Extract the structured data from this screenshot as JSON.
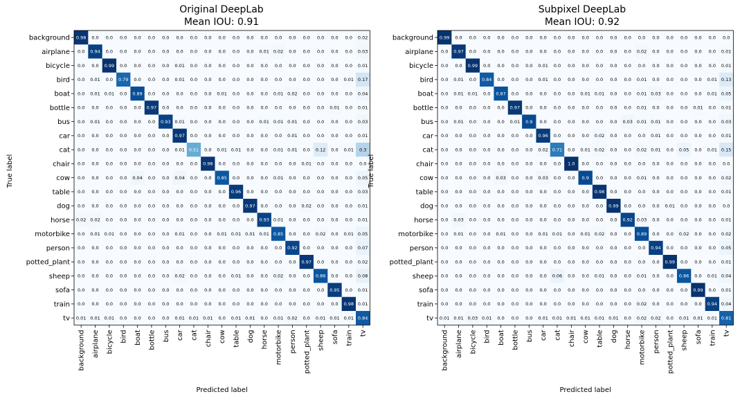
{
  "chart_data": [
    {
      "type": "heatmap",
      "title": "Original DeepLab",
      "subtitle": "Mean IOU: 0.91",
      "xlabel": "Predicted label",
      "ylabel": "True label",
      "colormap": "Blues",
      "labels": [
        "background",
        "airplane",
        "bicycle",
        "bird",
        "boat",
        "bottle",
        "bus",
        "car",
        "cat",
        "chair",
        "cow",
        "table",
        "dog",
        "horse",
        "motorbike",
        "person",
        "potted_plant",
        "sheep",
        "sofa",
        "train",
        "tv"
      ],
      "matrix": [
        [
          "0.98",
          "0.0",
          "0.0",
          "0.0",
          "0.0",
          "0.0",
          "0.0",
          "0.0",
          "0.0",
          "0.0",
          "0.0",
          "0.0",
          "0.0",
          "0.0",
          "0.0",
          "0.0",
          "0.0",
          "0.0",
          "0.0",
          "0.0",
          "0.02"
        ],
        [
          "0.0",
          "0.94",
          "0.0",
          "0.0",
          "0.0",
          "0.0",
          "0.0",
          "0.0",
          "0.0",
          "0.0",
          "0.0",
          "0.0",
          "0.0",
          "0.01",
          "0.02",
          "0.0",
          "0.0",
          "0.0",
          "0.0",
          "0.0",
          "0.03"
        ],
        [
          "0.0",
          "0.0",
          "0.99",
          "0.0",
          "0.0",
          "0.0",
          "0.0",
          "0.01",
          "0.0",
          "0.0",
          "0.0",
          "0.0",
          "0.0",
          "0.0",
          "0.0",
          "0.0",
          "0.0",
          "0.0",
          "0.0",
          "0.0",
          "0.01"
        ],
        [
          "0.0",
          "0.01",
          "0.0",
          "0.79",
          "0.0",
          "0.0",
          "0.0",
          "0.01",
          "0.0",
          "0.0",
          "0.0",
          "0.0",
          "0.0",
          "0.0",
          "0.0",
          "0.0",
          "0.0",
          "0.0",
          "0.0",
          "0.01",
          "0.17"
        ],
        [
          "0.0",
          "0.01",
          "0.01",
          "0.0",
          "0.89",
          "0.0",
          "0.0",
          "0.0",
          "0.0",
          "0.0",
          "0.01",
          "0.0",
          "0.0",
          "0.0",
          "0.01",
          "0.02",
          "0.0",
          "0.0",
          "0.0",
          "0.0",
          "0.04"
        ],
        [
          "0.0",
          "0.0",
          "0.0",
          "0.0",
          "0.0",
          "0.97",
          "0.0",
          "0.0",
          "0.0",
          "0.0",
          "0.0",
          "0.0",
          "0.0",
          "0.0",
          "0.0",
          "0.0",
          "0.0",
          "0.0",
          "0.01",
          "0.0",
          "0.01"
        ],
        [
          "0.0",
          "0.01",
          "0.0",
          "0.0",
          "0.0",
          "0.0",
          "0.93",
          "0.01",
          "0.0",
          "0.0",
          "0.0",
          "0.0",
          "0.0",
          "0.01",
          "0.01",
          "0.01",
          "0.0",
          "0.0",
          "0.0",
          "0.0",
          "0.03"
        ],
        [
          "0.0",
          "0.0",
          "0.0",
          "0.0",
          "0.0",
          "0.0",
          "0.0",
          "0.97",
          "0.0",
          "0.0",
          "0.0",
          "0.0",
          "0.0",
          "0.0",
          "0.0",
          "0.01",
          "0.0",
          "0.0",
          "0.0",
          "0.0",
          "0.01"
        ],
        [
          "0.0",
          "0.0",
          "0.0",
          "0.0",
          "0.0",
          "0.0",
          "0.0",
          "0.01",
          "0.51",
          "0.0",
          "0.01",
          "0.01",
          "0.0",
          "0.0",
          "0.01",
          "0.01",
          "0.0",
          "0.12",
          "0.0",
          "0.01",
          "0.3"
        ],
        [
          "0.0",
          "0.0",
          "0.0",
          "0.0",
          "0.0",
          "0.0",
          "0.0",
          "0.0",
          "0.0",
          "0.98",
          "0.0",
          "0.0",
          "0.0",
          "0.0",
          "0.0",
          "0.0",
          "0.01",
          "0.0",
          "0.0",
          "0.0",
          "0.0"
        ],
        [
          "0.0",
          "0.0",
          "0.0",
          "0.0",
          "0.04",
          "0.0",
          "0.0",
          "0.04",
          "0.0",
          "0.0",
          "0.85",
          "0.0",
          "0.0",
          "0.0",
          "0.01",
          "0.0",
          "0.0",
          "0.0",
          "0.0",
          "0.0",
          "0.05"
        ],
        [
          "0.0",
          "0.0",
          "0.0",
          "0.0",
          "0.0",
          "0.0",
          "0.0",
          "0.0",
          "0.0",
          "0.0",
          "0.0",
          "0.96",
          "0.0",
          "0.0",
          "0.0",
          "0.0",
          "0.0",
          "0.0",
          "0.0",
          "0.0",
          "0.03"
        ],
        [
          "0.0",
          "0.0",
          "0.0",
          "0.0",
          "0.0",
          "0.0",
          "0.0",
          "0.0",
          "0.0",
          "0.0",
          "0.0",
          "0.0",
          "0.97",
          "0.0",
          "0.0",
          "0.0",
          "0.02",
          "0.0",
          "0.0",
          "0.0",
          "0.01"
        ],
        [
          "0.02",
          "0.02",
          "0.0",
          "0.0",
          "0.0",
          "0.0",
          "0.0",
          "0.0",
          "0.0",
          "0.0",
          "0.0",
          "0.0",
          "0.0",
          "0.93",
          "0.01",
          "0.0",
          "0.0",
          "0.0",
          "0.0",
          "0.0",
          "0.01"
        ],
        [
          "0.0",
          "0.01",
          "0.01",
          "0.0",
          "0.0",
          "0.0",
          "0.0",
          "0.01",
          "0.0",
          "0.0",
          "0.01",
          "0.01",
          "0.01",
          "0.01",
          "0.85",
          "0.0",
          "0.0",
          "0.02",
          "0.0",
          "0.01",
          "0.05"
        ],
        [
          "0.0",
          "0.0",
          "0.0",
          "0.0",
          "0.0",
          "0.0",
          "0.0",
          "0.0",
          "0.0",
          "0.0",
          "0.0",
          "0.0",
          "0.0",
          "0.0",
          "0.0",
          "0.92",
          "0.0",
          "0.0",
          "0.0",
          "0.0",
          "0.07"
        ],
        [
          "0.0",
          "0.0",
          "0.0",
          "0.0",
          "0.0",
          "0.0",
          "0.0",
          "0.0",
          "0.0",
          "0.0",
          "0.0",
          "0.0",
          "0.0",
          "0.0",
          "0.0",
          "0.0",
          "0.97",
          "0.0",
          "0.0",
          "0.0",
          "0.02"
        ],
        [
          "0.0",
          "0.0",
          "0.0",
          "0.0",
          "0.0",
          "0.0",
          "0.0",
          "0.02",
          "0.0",
          "0.0",
          "0.0",
          "0.01",
          "0.0",
          "0.0",
          "0.02",
          "0.0",
          "0.0",
          "0.86",
          "0.0",
          "0.0",
          "0.08"
        ],
        [
          "0.0",
          "0.0",
          "0.0",
          "0.0",
          "0.0",
          "0.0",
          "0.0",
          "0.0",
          "0.0",
          "0.0",
          "0.0",
          "0.0",
          "0.0",
          "0.0",
          "0.0",
          "0.0",
          "0.0",
          "0.0",
          "0.95",
          "0.0",
          "0.01"
        ],
        [
          "0.0",
          "0.0",
          "0.0",
          "0.0",
          "0.0",
          "0.0",
          "0.0",
          "0.0",
          "0.0",
          "0.0",
          "0.0",
          "0.0",
          "0.0",
          "0.0",
          "0.0",
          "0.0",
          "0.0",
          "0.0",
          "0.0",
          "0.98",
          "0.01"
        ],
        [
          "0.01",
          "0.01",
          "0.01",
          "0.0",
          "0.0",
          "0.0",
          "0.0",
          "0.01",
          "0.01",
          "0.01",
          "0.0",
          "0.01",
          "0.01",
          "0.0",
          "0.01",
          "0.02",
          "0.0",
          "0.01",
          "0.01",
          "0.01",
          "0.84"
        ]
      ]
    },
    {
      "type": "heatmap",
      "title": "Subpixel DeepLab",
      "subtitle": "Mean IOU: 0.92",
      "xlabel": "Predicted label",
      "ylabel": "True label",
      "colormap": "Blues",
      "labels": [
        "background",
        "airplane",
        "bicycle",
        "bird",
        "boat",
        "bottle",
        "bus",
        "car",
        "cat",
        "chair",
        "cow",
        "table",
        "dog",
        "horse",
        "motorbike",
        "person",
        "potted_plant",
        "sheep",
        "sofa",
        "train",
        "tv"
      ],
      "matrix": [
        [
          "0.99",
          "0.0",
          "0.0",
          "0.0",
          "0.0",
          "0.0",
          "0.0",
          "0.0",
          "0.0",
          "0.0",
          "0.0",
          "0.0",
          "0.0",
          "0.0",
          "0.0",
          "0.0",
          "0.0",
          "0.0",
          "0.0",
          "0.0",
          "0.0"
        ],
        [
          "0.0",
          "0.97",
          "0.0",
          "0.0",
          "0.0",
          "0.0",
          "0.0",
          "0.0",
          "0.0",
          "0.0",
          "0.0",
          "0.0",
          "0.0",
          "0.0",
          "0.02",
          "0.0",
          "0.0",
          "0.0",
          "0.0",
          "0.0",
          "0.01"
        ],
        [
          "0.0",
          "0.0",
          "0.99",
          "0.0",
          "0.0",
          "0.0",
          "0.0",
          "0.01",
          "0.0",
          "0.0",
          "0.0",
          "0.0",
          "0.0",
          "0.0",
          "0.0",
          "0.0",
          "0.0",
          "0.0",
          "0.0",
          "0.0",
          "0.01"
        ],
        [
          "0.0",
          "0.01",
          "0.0",
          "0.84",
          "0.0",
          "0.0",
          "0.0",
          "0.01",
          "0.0",
          "0.0",
          "0.0",
          "0.0",
          "0.0",
          "0.0",
          "0.01",
          "0.0",
          "0.0",
          "0.0",
          "0.0",
          "0.01",
          "0.13"
        ],
        [
          "0.0",
          "0.01",
          "0.01",
          "0.0",
          "0.87",
          "0.0",
          "0.0",
          "0.0",
          "0.0",
          "0.0",
          "0.01",
          "0.01",
          "0.0",
          "0.0",
          "0.01",
          "0.03",
          "0.0",
          "0.0",
          "0.0",
          "0.01",
          "0.05"
        ],
        [
          "0.0",
          "0.0",
          "0.0",
          "0.0",
          "0.0",
          "0.97",
          "0.0",
          "0.0",
          "0.0",
          "0.0",
          "0.0",
          "0.0",
          "0.0",
          "0.0",
          "0.01",
          "0.0",
          "0.0",
          "0.0",
          "0.01",
          "0.0",
          "0.01"
        ],
        [
          "0.0",
          "0.01",
          "0.0",
          "0.0",
          "0.0",
          "0.01",
          "0.9",
          "0.0",
          "0.0",
          "0.0",
          "0.0",
          "0.0",
          "0.0",
          "0.03",
          "0.01",
          "0.01",
          "0.0",
          "0.0",
          "0.0",
          "0.0",
          "0.03"
        ],
        [
          "0.0",
          "0.0",
          "0.0",
          "0.0",
          "0.0",
          "0.0",
          "0.0",
          "0.96",
          "0.0",
          "0.0",
          "0.0",
          "0.02",
          "0.0",
          "0.0",
          "0.0",
          "0.01",
          "0.0",
          "0.0",
          "0.0",
          "0.0",
          "0.01"
        ],
        [
          "0.0",
          "0.0",
          "0.0",
          "0.0",
          "0.0",
          "0.0",
          "0.0",
          "0.02",
          "0.71",
          "0.0",
          "0.01",
          "0.02",
          "0.0",
          "0.0",
          "0.02",
          "0.01",
          "0.0",
          "0.05",
          "0.0",
          "0.01",
          "0.15"
        ],
        [
          "0.0",
          "0.0",
          "0.0",
          "0.0",
          "0.0",
          "0.0",
          "0.0",
          "0.0",
          "0.0",
          "1.0",
          "0.0",
          "0.0",
          "0.0",
          "0.0",
          "0.0",
          "0.0",
          "0.0",
          "0.0",
          "0.0",
          "0.0",
          "0.0"
        ],
        [
          "0.0",
          "0.0",
          "0.0",
          "0.0",
          "0.03",
          "0.0",
          "0.0",
          "0.03",
          "0.0",
          "0.0",
          "0.9",
          "0.0",
          "0.0",
          "0.0",
          "0.01",
          "0.0",
          "0.0",
          "0.0",
          "0.0",
          "0.0",
          "0.02"
        ],
        [
          "0.0",
          "0.0",
          "0.0",
          "0.0",
          "0.0",
          "0.0",
          "0.0",
          "0.0",
          "0.0",
          "0.0",
          "0.0",
          "0.98",
          "0.0",
          "0.0",
          "0.0",
          "0.0",
          "0.0",
          "0.0",
          "0.0",
          "0.0",
          "0.01"
        ],
        [
          "0.0",
          "0.0",
          "0.0",
          "0.0",
          "0.0",
          "0.0",
          "0.0",
          "0.0",
          "0.0",
          "0.0",
          "0.0",
          "0.0",
          "0.99",
          "0.0",
          "0.0",
          "0.0",
          "0.01",
          "0.0",
          "0.0",
          "0.0",
          "0.0"
        ],
        [
          "0.0",
          "0.03",
          "0.0",
          "0.0",
          "0.0",
          "0.0",
          "0.0",
          "0.0",
          "0.0",
          "0.0",
          "0.0",
          "0.0",
          "0.0",
          "0.92",
          "0.03",
          "0.0",
          "0.0",
          "0.0",
          "0.0",
          "0.0",
          "0.01"
        ],
        [
          "0.0",
          "0.01",
          "0.0",
          "0.0",
          "0.01",
          "0.0",
          "0.0",
          "0.01",
          "0.01",
          "0.0",
          "0.01",
          "0.02",
          "0.0",
          "0.0",
          "0.89",
          "0.0",
          "0.0",
          "0.02",
          "0.0",
          "0.0",
          "0.02"
        ],
        [
          "0.0",
          "0.0",
          "0.0",
          "0.0",
          "0.0",
          "0.0",
          "0.0",
          "0.0",
          "0.0",
          "0.0",
          "0.0",
          "0.0",
          "0.0",
          "0.0",
          "0.0",
          "0.94",
          "0.0",
          "0.0",
          "0.0",
          "0.0",
          "0.05"
        ],
        [
          "0.0",
          "0.0",
          "0.0",
          "0.0",
          "0.0",
          "0.0",
          "0.0",
          "0.0",
          "0.0",
          "0.0",
          "0.0",
          "0.0",
          "0.0",
          "0.0",
          "0.0",
          "0.0",
          "0.99",
          "0.0",
          "0.0",
          "0.0",
          "0.01"
        ],
        [
          "0.0",
          "0.0",
          "0.0",
          "0.0",
          "0.0",
          "0.0",
          "0.0",
          "0.0",
          "0.06",
          "0.0",
          "0.0",
          "0.01",
          "0.0",
          "0.0",
          "0.01",
          "0.0",
          "0.0",
          "0.86",
          "0.0",
          "0.01",
          "0.04"
        ],
        [
          "0.0",
          "0.0",
          "0.0",
          "0.0",
          "0.0",
          "0.0",
          "0.0",
          "0.0",
          "0.0",
          "0.0",
          "0.0",
          "0.0",
          "0.0",
          "0.0",
          "0.0",
          "0.0",
          "0.0",
          "0.0",
          "0.99",
          "0.0",
          "0.01"
        ],
        [
          "0.0",
          "0.0",
          "0.0",
          "0.0",
          "0.0",
          "0.0",
          "0.0",
          "0.0",
          "0.0",
          "0.0",
          "0.0",
          "0.0",
          "0.0",
          "0.0",
          "0.02",
          "0.0",
          "0.0",
          "0.0",
          "0.0",
          "0.94",
          "0.04"
        ],
        [
          "0.01",
          "0.01",
          "0.03",
          "0.01",
          "0.0",
          "0.0",
          "0.0",
          "0.01",
          "0.01",
          "0.01",
          "0.01",
          "0.01",
          "0.01",
          "0.0",
          "0.02",
          "0.02",
          "0.0",
          "0.01",
          "0.01",
          "0.01",
          "0.81"
        ]
      ]
    }
  ]
}
